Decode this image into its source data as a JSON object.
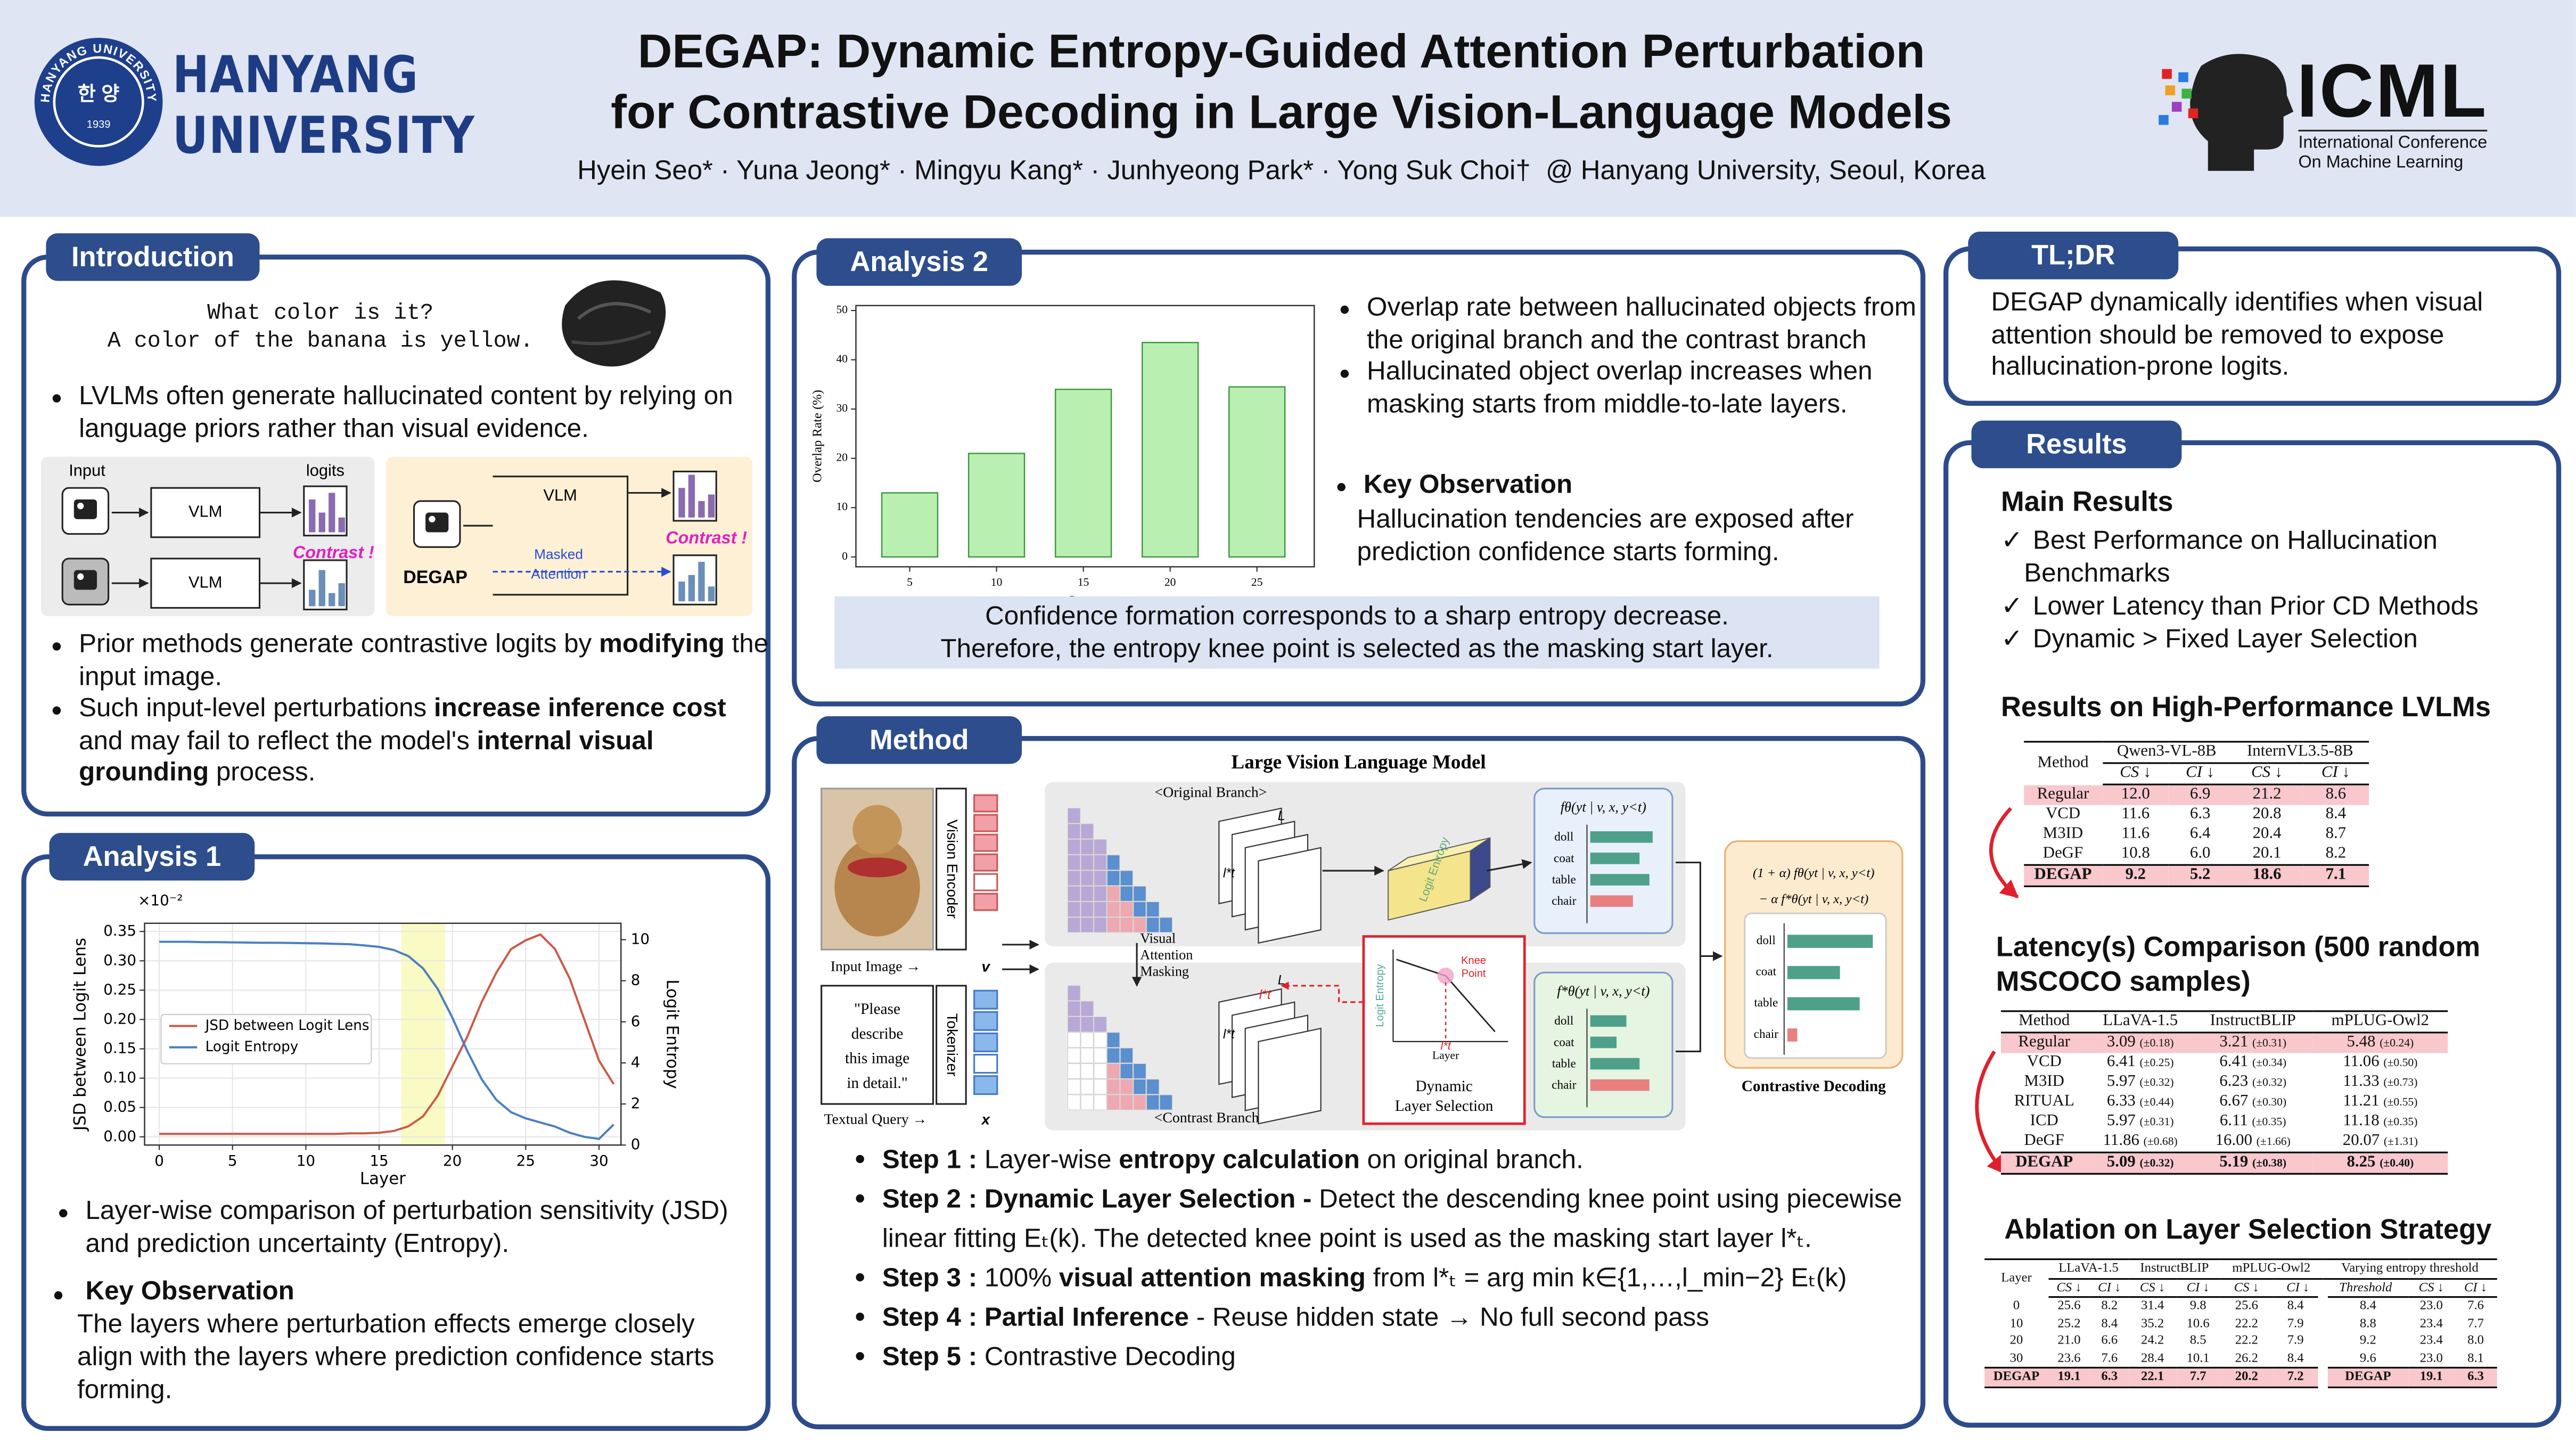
{
  "header": {
    "seal": {
      "ring": "HANYANG UNIVERSITY",
      "name": "한 양",
      "year": "1939"
    },
    "university": [
      "HANYANG",
      "UNIVERSITY"
    ],
    "title": [
      "DEGAP: Dynamic Entropy-Guided Attention Perturbation",
      "for Contrastive Decoding in Large Vision-Language Models"
    ],
    "authors": "Hyein Seo* · Yuna Jeong* · Mingyu Kang* · Junhyeong Park* · Yong Suk Choi†",
    "affiliation": "@ Hanyang University, Seoul, Korea",
    "conference": "ICML",
    "conference_full": [
      "International Conference",
      "On Machine Learning"
    ]
  },
  "introduction": {
    "heading": "Introduction",
    "example": [
      "What color is it?",
      "A color of the banana is yellow."
    ],
    "bullets": [
      [
        {
          "text": "LVLMs often generate hallucinated content by relying on language priors rather than visual evidence."
        }
      ]
    ],
    "diagram": {
      "input": "Input",
      "logits": "logits",
      "vlm": "VLM",
      "contrast": "Contrast !",
      "degap": "DEGAP",
      "masked_attention": [
        "Masked",
        "Attention"
      ]
    },
    "bullets2": [
      [
        {
          "text": "Prior methods generate contrastive logits by "
        },
        {
          "text": "modifying",
          "bold": true
        },
        {
          "text": " the input image."
        }
      ],
      [
        {
          "text": "Such input-level perturbations "
        },
        {
          "text": "increase inference cost",
          "bold": true
        },
        {
          "text": " and may fail to reflect the model's "
        },
        {
          "text": "internal visual grounding",
          "bold": true
        },
        {
          "text": " process."
        }
      ]
    ]
  },
  "analysis1": {
    "heading": "Analysis 1",
    "chart": {
      "type": "line",
      "x": [
        0,
        1,
        2,
        3,
        4,
        5,
        6,
        7,
        8,
        9,
        10,
        11,
        12,
        13,
        14,
        15,
        16,
        17,
        18,
        19,
        20,
        21,
        22,
        23,
        24,
        25,
        26,
        27,
        28,
        29,
        30,
        31
      ],
      "series": [
        {
          "name": "JSD between Logit Lens",
          "color": "#cc5a48",
          "values": [
            0.005,
            0.005,
            0.005,
            0.005,
            0.005,
            0.005,
            0.005,
            0.005,
            0.005,
            0.005,
            0.005,
            0.005,
            0.005,
            0.006,
            0.006,
            0.007,
            0.01,
            0.018,
            0.035,
            0.07,
            0.12,
            0.17,
            0.23,
            0.28,
            0.32,
            0.335,
            0.345,
            0.32,
            0.27,
            0.2,
            0.13,
            0.09
          ]
        },
        {
          "name": "Logit Entropy",
          "color": "#4a7fc1",
          "axis": "y2",
          "values": [
            9.9,
            9.9,
            9.9,
            9.88,
            9.88,
            9.87,
            9.86,
            9.85,
            9.85,
            9.84,
            9.83,
            9.82,
            9.8,
            9.78,
            9.72,
            9.65,
            9.5,
            9.2,
            8.6,
            7.6,
            6.2,
            4.6,
            3.2,
            2.2,
            1.6,
            1.3,
            1.1,
            0.9,
            0.6,
            0.4,
            0.3,
            1.0
          ]
        }
      ],
      "xlim": [
        -1,
        31.5
      ],
      "xticks": [
        0,
        5,
        10,
        15,
        20,
        25,
        30
      ],
      "ylim": [
        -0.014,
        0.364
      ],
      "yticks": [
        {
          "value": 0,
          "label": "0.00"
        },
        {
          "value": 0.05,
          "label": "0.05"
        },
        {
          "value": 0.1,
          "label": "0.10"
        },
        {
          "value": 0.15,
          "label": "0.15"
        },
        {
          "value": 0.2,
          "label": "0.20"
        },
        {
          "value": 0.25,
          "label": "0.25"
        },
        {
          "value": 0.3,
          "label": "0.30"
        },
        {
          "value": 0.35,
          "label": "0.35"
        }
      ],
      "y_scale_label": "×10⁻²",
      "y2lim": [
        0,
        10.8
      ],
      "y2ticks": [
        0,
        2,
        4,
        6,
        8,
        10
      ],
      "xlabel": "Layer",
      "ylabel": "JSD between Logit Lens",
      "y2label": "Logit Entropy",
      "shade": [
        16.5,
        19.5
      ],
      "shade_color": "#fafac4",
      "grid": true,
      "legend": "center-left"
    },
    "bullets": [
      [
        {
          "text": "Layer-wise comparison of perturbation sensitivity (JSD) and prediction uncertainty (Entropy)."
        }
      ]
    ],
    "key": "Key Observation",
    "observation": "The layers where perturbation effects emerge closely align with the layers where prediction confidence starts forming."
  },
  "analysis2": {
    "heading": "Analysis 2",
    "chart": {
      "type": "bar",
      "x": [
        5,
        10,
        15,
        20,
        25
      ],
      "values": [
        13,
        21,
        34,
        43.5,
        34.5
      ],
      "color": "#b9f0b2",
      "edge_color": "#3f9a3f",
      "xlim": [
        1.9,
        28.3
      ],
      "xticks": [
        5,
        10,
        15,
        20,
        25
      ],
      "ylim": [
        -2,
        51
      ],
      "yticks": [
        0,
        10,
        20,
        30,
        40,
        50
      ],
      "xlabel": "Layer",
      "ylabel": "Overlap Rate (%)",
      "grid": false
    },
    "bullets": [
      [
        {
          "text": "Overlap rate between hallucinated objects from the original branch and the contrast branch"
        }
      ],
      [
        {
          "text": "Hallucinated object overlap increases when masking starts from middle-to-late layers."
        }
      ]
    ],
    "key": "Key Observation",
    "observation": "Hallucination tendencies are exposed after prediction confidence starts forming.",
    "highlight": [
      "Confidence formation corresponds to a sharp entropy decrease.",
      "Therefore, the entropy knee point is selected as the masking start layer."
    ]
  },
  "method": {
    "heading": "Method",
    "figure": {
      "title": "Large Vision Language Model",
      "vision_encoder": "Vision Encoder",
      "input_image": "Input Image →",
      "v": "v",
      "query": [
        "\"Please",
        "describe",
        "this image",
        "in detail.\""
      ],
      "tokenizer": "Tokenizer",
      "textual_query": "Textual Query →",
      "x": "x",
      "original_branch": "<Original Branch>",
      "contrast_branch": "<Contrast Branch>",
      "masking": [
        "Visual",
        "Attention",
        "Masking"
      ],
      "layer_L": "L",
      "layer_lt": "l*t",
      "logit_entropy": "Logit Entropy",
      "knee_point": [
        "Knee",
        "Point"
      ],
      "layer": "Layer",
      "dynamic": [
        "Dynamic",
        "Layer Selection"
      ],
      "f_original": "fθ(yt | v, x, y<t)",
      "f_contrast": "f*θ(yt | v, x, y<t)",
      "objects": [
        "doll",
        "coat",
        "table",
        "chair"
      ],
      "cd_formula": [
        "(1 + α) fθ(yt | v, x, y<t)",
        "− α f*θ(yt | v, x, y<t)"
      ],
      "contrastive_decoding": "Contrastive Decoding"
    },
    "steps": [
      [
        {
          "text": "Step 1 : ",
          "bold": true
        },
        {
          "text": "Layer-wise "
        },
        {
          "text": "entropy calculation",
          "bold": true
        },
        {
          "text": " on original branch."
        }
      ],
      [
        {
          "text": "Step 2 : ",
          "bold": true
        },
        {
          "text": "Dynamic Layer Selection -",
          "bold": true
        },
        {
          "text": " Detect the descending knee point using piecewise linear fitting Eₜ(k). The detected knee point is used as the masking start layer l*ₜ."
        }
      ],
      [
        {
          "text": "Step 3 : ",
          "bold": true
        },
        {
          "text": "100% "
        },
        {
          "text": "visual attention masking",
          "bold": true
        },
        {
          "text": " from l*ₜ = arg min k∈{1,…,l_min−2} Eₜ(k)"
        }
      ],
      [
        {
          "text": "Step 4 : ",
          "bold": true
        },
        {
          "text": "Partial Inference",
          "bold": true
        },
        {
          "text": " - Reuse hidden state → No full second pass"
        }
      ],
      [
        {
          "text": "Step 5 : ",
          "bold": true
        },
        {
          "text": "Contrastive Decoding"
        }
      ]
    ]
  },
  "tldr": {
    "heading": "TL;DR",
    "text": "DEGAP dynamically identifies when visual attention should be removed to expose hallucination-prone logits."
  },
  "results": {
    "heading": "Results",
    "main": "Main Results",
    "check": "✓",
    "checks": [
      "Best Performance on Hallucination Benchmarks",
      "Lower Latency than Prior CD Methods",
      "Dynamic > Fixed Layer Selection"
    ],
    "table1_title": "Results on High-Performance LVLMs",
    "table1": {
      "header": [
        "Method",
        "Qwen3-VL-8B",
        "InternVL3.5-8B"
      ],
      "subheader": [
        "CS ↓",
        "CI ↓",
        "CS ↓",
        "CI ↓"
      ],
      "rows": [
        [
          "Regular",
          "12.0",
          "6.9",
          "21.2",
          "8.6"
        ],
        [
          "VCD",
          "11.6",
          "6.3",
          "20.8",
          "8.4"
        ],
        [
          "M3ID",
          "11.6",
          "6.4",
          "20.4",
          "8.7"
        ],
        [
          "DeGF",
          "10.8",
          "6.0",
          "20.1",
          "8.2"
        ],
        [
          "DEGAP",
          "9.2",
          "5.2",
          "18.6",
          "7.1"
        ]
      ],
      "highlight_rows": [
        0,
        4
      ],
      "bold_rows": [
        4
      ]
    },
    "table2_title": "Latency(s) Comparison (500 random MSCOCO samples)",
    "table2": {
      "header": [
        "Method",
        "LLaVA-1.5",
        "InstructBLIP",
        "mPLUG-Owl2"
      ],
      "rows": [
        [
          "Regular",
          [
            "3.09",
            "(±0.18)"
          ],
          [
            "3.21",
            "(±0.31)"
          ],
          [
            "5.48",
            "(±0.24)"
          ]
        ],
        [
          "VCD",
          [
            "6.41",
            "(±0.25)"
          ],
          [
            "6.41",
            "(±0.34)"
          ],
          [
            "11.06",
            "(±0.50)"
          ]
        ],
        [
          "M3ID",
          [
            "5.97",
            "(±0.32)"
          ],
          [
            "6.23",
            "(±0.32)"
          ],
          [
            "11.33",
            "(±0.73)"
          ]
        ],
        [
          "RITUAL",
          [
            "6.33",
            "(±0.44)"
          ],
          [
            "6.67",
            "(±0.30)"
          ],
          [
            "11.21",
            "(±0.55)"
          ]
        ],
        [
          "ICD",
          [
            "5.97",
            "(±0.31)"
          ],
          [
            "6.11",
            "(±0.35)"
          ],
          [
            "11.18",
            "(±0.35)"
          ]
        ],
        [
          "DeGF",
          [
            "11.86",
            "(±0.68)"
          ],
          [
            "16.00",
            "(±1.66)"
          ],
          [
            "20.07",
            "(±1.31)"
          ]
        ],
        [
          "DEGAP",
          [
            "5.09",
            "(±0.32)"
          ],
          [
            "5.19",
            "(±0.38)"
          ],
          [
            "8.25",
            "(±0.40)"
          ]
        ]
      ],
      "highlight_rows": [
        0,
        6
      ],
      "bold_rows": [
        6
      ]
    },
    "table3_title": "Ablation on Layer Selection Strategy",
    "table3": {
      "header": [
        "Layer",
        "LLaVA-1.5",
        "InstructBLIP",
        "mPLUG-Owl2",
        "Varying entropy threshold"
      ],
      "subheader": [
        "CS ↓",
        "CI ↓",
        "CS ↓",
        "CI ↓",
        "CS ↓",
        "CI ↓",
        "Threshold",
        "CS ↓",
        "CI ↓"
      ],
      "rows": [
        [
          "0",
          "25.6",
          "8.2",
          "31.4",
          "9.8",
          "25.6",
          "8.4",
          "8.4",
          "23.0",
          "7.6"
        ],
        [
          "10",
          "25.2",
          "8.4",
          "35.2",
          "10.6",
          "22.2",
          "7.9",
          "8.8",
          "23.4",
          "7.7"
        ],
        [
          "20",
          "21.0",
          "6.6",
          "24.2",
          "8.5",
          "22.2",
          "7.9",
          "9.2",
          "23.4",
          "8.0"
        ],
        [
          "30",
          "23.6",
          "7.6",
          "28.4",
          "10.1",
          "26.2",
          "8.4",
          "9.6",
          "23.0",
          "8.1"
        ],
        [
          "DEGAP",
          "19.1",
          "6.3",
          "22.1",
          "7.7",
          "20.2",
          "7.2",
          "DEGAP",
          "19.1",
          "6.3"
        ]
      ],
      "highlight_rows": [
        4
      ],
      "bold_rows": [
        4
      ]
    }
  }
}
